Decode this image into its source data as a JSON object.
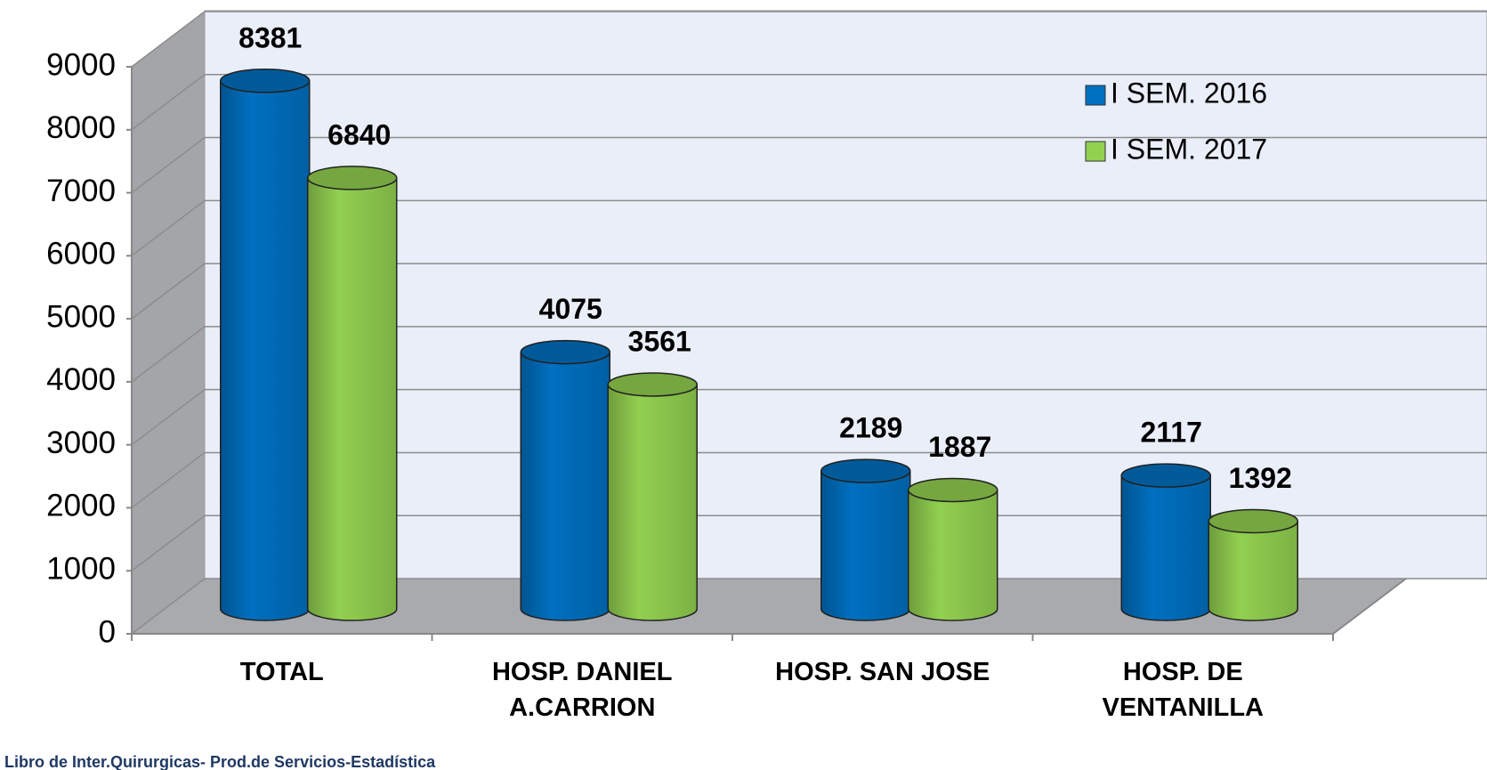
{
  "chart_data": {
    "type": "bar3d_cylinder",
    "categories": [
      "TOTAL",
      "HOSP. DANIEL A.CARRION",
      "HOSP. SAN JOSE",
      "HOSP. DE VENTANILLA"
    ],
    "series": [
      {
        "name": "I SEM. 2016",
        "color": "#0070c0",
        "values": [
          8381,
          4075,
          2189,
          2117
        ]
      },
      {
        "name": "I SEM. 2017",
        "color": "#92d050",
        "values": [
          6840,
          3561,
          1887,
          1392
        ]
      }
    ],
    "ylim": [
      0,
      9000
    ],
    "yticks": [
      0,
      1000,
      2000,
      3000,
      4000,
      5000,
      6000,
      7000,
      8000,
      9000
    ],
    "grid": true,
    "legend": "upper right",
    "source": ": Libro de Inter.Quirurgicas- Prod.de Servicios-Estadística"
  }
}
